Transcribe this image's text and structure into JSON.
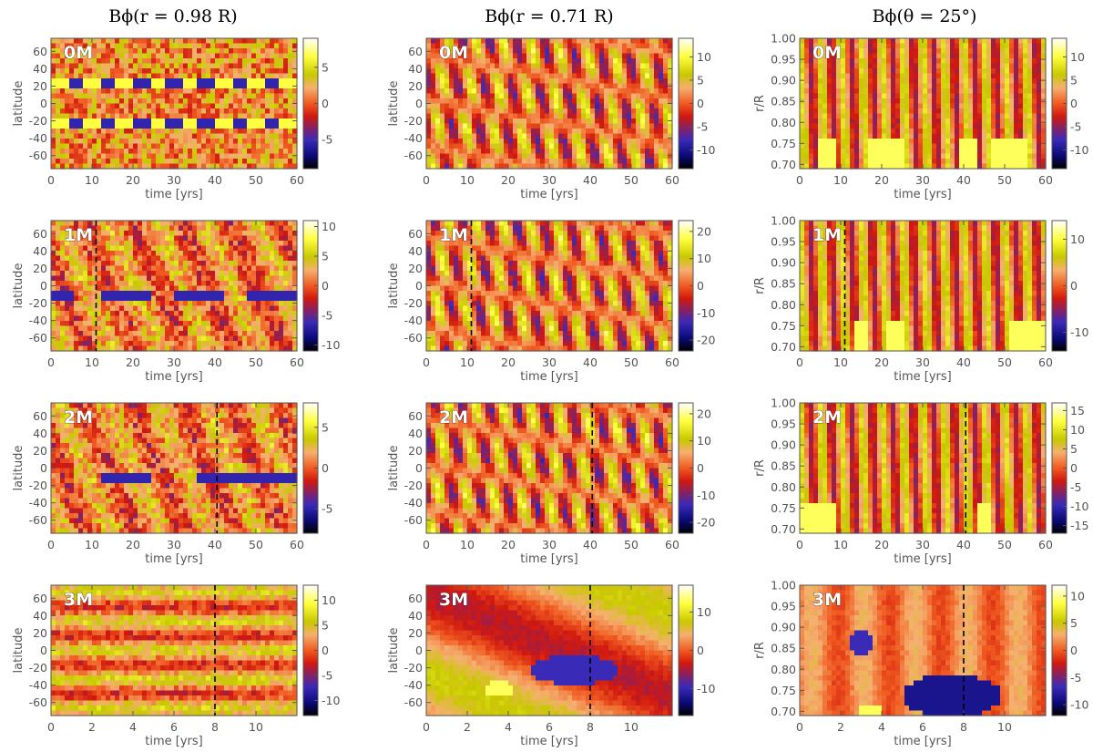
{
  "figure": {
    "column_titles": [
      "Bϕ(r = 0.98 R)",
      "Bϕ(r = 0.71 R)",
      "Bϕ(θ = 25°)"
    ],
    "colors": {
      "axis": "#555555",
      "colormap": [
        "#000000",
        "#0a0a78",
        "#3a2ab8",
        "#e02010",
        "#f07a2a",
        "#f5c080",
        "#c8c800",
        "#ffff40",
        "#ffffff"
      ]
    }
  },
  "chart_data": [
    {
      "type": "heatmap",
      "panel": "0M",
      "quantity": "Bϕ(r = 0.98 R)",
      "xlabel": "time [yrs]",
      "ylabel": "latitude",
      "xlim": [
        0,
        60
      ],
      "ylim": [
        -75,
        75
      ],
      "xticks": [
        0,
        10,
        20,
        30,
        40,
        50,
        60
      ],
      "yticks": [
        60,
        40,
        20,
        0,
        -20,
        -40,
        -60
      ],
      "colorbar": {
        "range": [
          -9,
          9
        ],
        "ticks": [
          5,
          0,
          -5
        ]
      },
      "pattern": "band",
      "marker_time": null
    },
    {
      "type": "heatmap",
      "panel": "0M",
      "quantity": "Bϕ(r = 0.71 R)",
      "xlabel": "time [yrs]",
      "ylabel": "latitude",
      "xlim": [
        0,
        60
      ],
      "ylim": [
        -75,
        75
      ],
      "xticks": [
        0,
        10,
        20,
        30,
        40,
        50,
        60
      ],
      "yticks": [
        60,
        40,
        20,
        0,
        -20,
        -40,
        -60
      ],
      "colorbar": {
        "range": [
          -14,
          14
        ],
        "ticks": [
          10,
          5,
          0,
          -5,
          -10
        ]
      },
      "pattern": "wave",
      "marker_time": null
    },
    {
      "type": "heatmap",
      "panel": "0M",
      "quantity": "Bϕ(θ = 25°)",
      "xlabel": "time [yrs]",
      "ylabel": "r/R",
      "xlim": [
        0,
        60
      ],
      "ylim": [
        0.69,
        1.0
      ],
      "xticks": [
        0,
        10,
        20,
        30,
        40,
        50,
        60
      ],
      "yticks": [
        1.0,
        0.95,
        0.9,
        0.85,
        0.8,
        0.75,
        0.7
      ],
      "colorbar": {
        "range": [
          -14,
          14
        ],
        "ticks": [
          10,
          5,
          0,
          -5,
          -10
        ]
      },
      "pattern": "radial",
      "marker_time": null
    },
    {
      "type": "heatmap",
      "panel": "1M",
      "quantity": "Bϕ(r = 0.98 R)",
      "xlabel": "time [yrs]",
      "ylabel": "latitude",
      "xlim": [
        0,
        60
      ],
      "ylim": [
        -75,
        75
      ],
      "xticks": [
        0,
        10,
        20,
        30,
        40,
        50,
        60
      ],
      "yticks": [
        60,
        40,
        20,
        0,
        -20,
        -40,
        -60
      ],
      "colorbar": {
        "range": [
          -11,
          11
        ],
        "ticks": [
          10,
          5,
          0,
          -5,
          -10
        ]
      },
      "pattern": "noise",
      "marker_time": 11
    },
    {
      "type": "heatmap",
      "panel": "1M",
      "quantity": "Bϕ(r = 0.71 R)",
      "xlabel": "time [yrs]",
      "ylabel": "latitude",
      "xlim": [
        0,
        60
      ],
      "ylim": [
        -75,
        75
      ],
      "xticks": [
        0,
        10,
        20,
        30,
        40,
        50,
        60
      ],
      "yticks": [
        60,
        40,
        20,
        0,
        -20,
        -40,
        -60
      ],
      "colorbar": {
        "range": [
          -24,
          24
        ],
        "ticks": [
          20,
          10,
          0,
          -10,
          -20
        ]
      },
      "pattern": "wave",
      "marker_time": 11
    },
    {
      "type": "heatmap",
      "panel": "1M",
      "quantity": "Bϕ(θ = 25°)",
      "xlabel": "time [yrs]",
      "ylabel": "r/R",
      "xlim": [
        0,
        60
      ],
      "ylim": [
        0.69,
        1.0
      ],
      "xticks": [
        0,
        10,
        20,
        30,
        40,
        50,
        60
      ],
      "yticks": [
        1.0,
        0.95,
        0.9,
        0.85,
        0.8,
        0.75,
        0.7
      ],
      "colorbar": {
        "range": [
          -14,
          14
        ],
        "ticks": [
          10,
          0,
          -10
        ]
      },
      "pattern": "radial",
      "marker_time": 11
    },
    {
      "type": "heatmap",
      "panel": "2M",
      "quantity": "Bϕ(r = 0.98 R)",
      "xlabel": "time [yrs]",
      "ylabel": "latitude",
      "xlim": [
        0,
        60
      ],
      "ylim": [
        -75,
        75
      ],
      "xticks": [
        0,
        10,
        20,
        30,
        40,
        50,
        60
      ],
      "yticks": [
        60,
        40,
        20,
        0,
        -20,
        -40,
        -60
      ],
      "colorbar": {
        "range": [
          -8,
          8
        ],
        "ticks": [
          5,
          0,
          -5
        ]
      },
      "pattern": "noise",
      "marker_time": 40.5
    },
    {
      "type": "heatmap",
      "panel": "2M",
      "quantity": "Bϕ(r = 0.71 R)",
      "xlabel": "time [yrs]",
      "ylabel": "latitude",
      "xlim": [
        0,
        60
      ],
      "ylim": [
        -75,
        75
      ],
      "xticks": [
        0,
        10,
        20,
        30,
        40,
        50,
        60
      ],
      "yticks": [
        60,
        40,
        20,
        0,
        -20,
        -40,
        -60
      ],
      "colorbar": {
        "range": [
          -24,
          24
        ],
        "ticks": [
          20,
          10,
          0,
          -10,
          -20
        ]
      },
      "pattern": "wave",
      "marker_time": 40.5
    },
    {
      "type": "heatmap",
      "panel": "2M",
      "quantity": "Bϕ(θ = 25°)",
      "xlabel": "time [yrs]",
      "ylabel": "r/R",
      "xlim": [
        0,
        60
      ],
      "ylim": [
        0.69,
        1.0
      ],
      "xticks": [
        0,
        10,
        20,
        30,
        40,
        50,
        60
      ],
      "yticks": [
        1.0,
        0.95,
        0.9,
        0.85,
        0.8,
        0.75,
        0.7
      ],
      "colorbar": {
        "range": [
          -17,
          17
        ],
        "ticks": [
          15,
          10,
          5,
          0,
          -5,
          -10,
          -15
        ]
      },
      "pattern": "radial",
      "marker_time": 40.5
    },
    {
      "type": "heatmap",
      "panel": "3M",
      "quantity": "Bϕ(r = 0.98 R)",
      "xlabel": "time [yrs]",
      "ylabel": "latitude",
      "xlim": [
        0,
        12
      ],
      "ylim": [
        -75,
        75
      ],
      "xticks": [
        0,
        2,
        4,
        6,
        8,
        10
      ],
      "yticks": [
        60,
        40,
        20,
        0,
        -20,
        -40,
        -60
      ],
      "colorbar": {
        "range": [
          -13,
          13
        ],
        "ticks": [
          10,
          5,
          0,
          -5,
          -10
        ]
      },
      "pattern": "bands",
      "marker_time": 8
    },
    {
      "type": "heatmap",
      "panel": "3M",
      "quantity": "Bϕ(r = 0.71 R)",
      "xlabel": "time [yrs]",
      "ylabel": "latitude",
      "xlim": [
        0,
        12
      ],
      "ylim": [
        -75,
        75
      ],
      "xticks": [
        0,
        2,
        4,
        6,
        8,
        10
      ],
      "yticks": [
        60,
        40,
        20,
        0,
        -20,
        -40,
        -60
      ],
      "colorbar": {
        "range": [
          -17,
          17
        ],
        "ticks": [
          10,
          0,
          -10
        ]
      },
      "pattern": "smooth",
      "marker_time": 8
    },
    {
      "type": "heatmap",
      "panel": "3M",
      "quantity": "Bϕ(θ = 25°)",
      "xlabel": "time [yrs]",
      "ylabel": "r/R",
      "xlim": [
        0,
        12
      ],
      "ylim": [
        0.69,
        1.0
      ],
      "xticks": [
        0,
        2,
        4,
        6,
        8,
        10
      ],
      "yticks": [
        1.0,
        0.95,
        0.9,
        0.85,
        0.8,
        0.75,
        0.7
      ],
      "colorbar": {
        "range": [
          -12,
          12
        ],
        "ticks": [
          10,
          5,
          0,
          -5,
          -10
        ]
      },
      "pattern": "blob",
      "marker_time": 8
    }
  ]
}
